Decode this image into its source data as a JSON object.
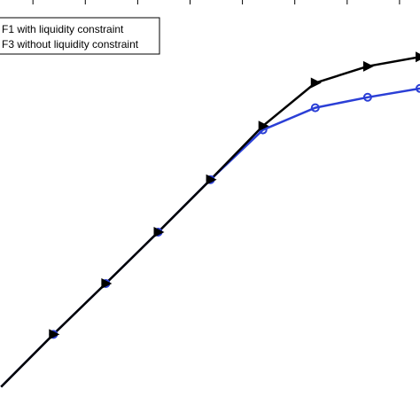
{
  "chart_data": {
    "type": "line",
    "title": "",
    "xlabel": "",
    "ylabel": "",
    "grid": false,
    "legend_position": "top-left",
    "x": [
      0,
      1,
      2,
      3,
      4,
      5,
      6,
      7,
      8
    ],
    "series": [
      {
        "name": "F1 with liquidity constraint",
        "color": "#000000",
        "marker": "triangle-right",
        "values": [
          0.0,
          0.95,
          1.87,
          2.8,
          3.75,
          4.72,
          5.5,
          5.8,
          5.97
        ]
      },
      {
        "name": "F3 without liquidity constraint",
        "color": "#2b3fd6",
        "marker": "circle",
        "values": [
          0.0,
          0.95,
          1.87,
          2.8,
          3.75,
          4.65,
          5.05,
          5.24,
          5.4
        ]
      }
    ],
    "xlim": [
      -0.02,
      8.0
    ],
    "ylim": [
      -0.6,
      7.0
    ]
  }
}
